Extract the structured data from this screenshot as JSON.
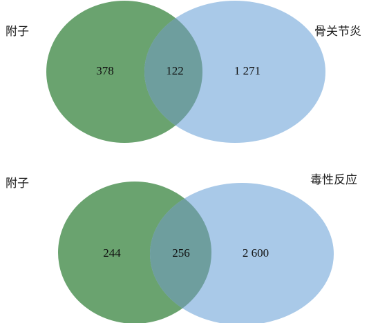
{
  "colors": {
    "left_set": "#6aa36f",
    "right_set": "#a9c9e8",
    "overlap": "#6e9e9e"
  },
  "diagrams": [
    {
      "left_label": "附子",
      "right_label": "骨关节炎",
      "left_only": "378",
      "overlap": "122",
      "right_only": "1 271"
    },
    {
      "left_label": "附子",
      "right_label": "毒性反应",
      "left_only": "244",
      "overlap": "256",
      "right_only": "2 600"
    }
  ]
}
